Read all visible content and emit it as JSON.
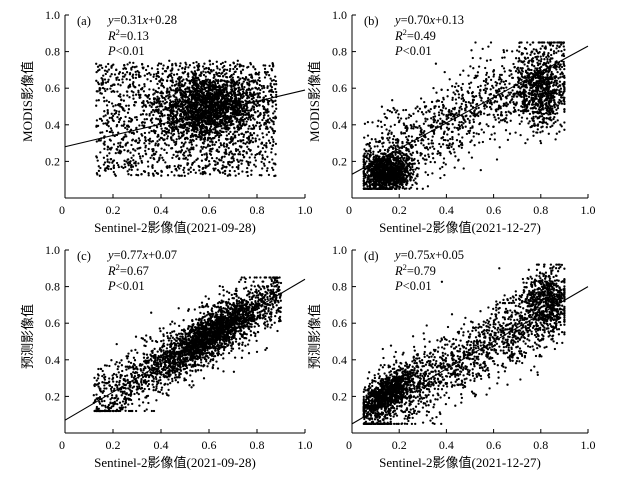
{
  "chart_data": [
    {
      "type": "scatter",
      "panel_label": "(a)",
      "xlabel": "Sentinel-2影像值(2021-09-28)",
      "ylabel": "MODIS影像值",
      "xlim": [
        0,
        1.0
      ],
      "ylim": [
        0,
        1.0
      ],
      "xticks": [
        "0",
        "0.2",
        "0.4",
        "0.6",
        "0.8",
        "1.0"
      ],
      "yticks": [
        "0",
        "0.2",
        "0.4",
        "0.6",
        "0.8",
        "1.0"
      ],
      "annotation": {
        "equation": "y=0.31x+0.28",
        "r2": "R2=0.13",
        "p": "P<0.01"
      },
      "regression": {
        "slope": 0.31,
        "intercept": 0.28
      },
      "point_cloud": {
        "x_range": [
          0.13,
          0.88
        ],
        "y_range": [
          0.12,
          0.75
        ],
        "center": [
          0.6,
          0.5
        ],
        "count": 3500
      }
    },
    {
      "type": "scatter",
      "panel_label": "(b)",
      "xlabel": "Sentinel-2影像值(2021-12-27)",
      "ylabel": "MODIS影像值",
      "xlim": [
        0,
        1.0
      ],
      "ylim": [
        0,
        1.0
      ],
      "xticks": [
        "0",
        "0.2",
        "0.4",
        "0.6",
        "0.8",
        "1.0"
      ],
      "yticks": [
        "0",
        "0.2",
        "0.4",
        "0.6",
        "0.8",
        "1.0"
      ],
      "annotation": {
        "equation": "y=0.70x+0.13",
        "r2": "R2=0.49",
        "p": "P<0.01"
      },
      "regression": {
        "slope": 0.7,
        "intercept": 0.13
      },
      "point_cloud": {
        "x_range": [
          0.05,
          0.9
        ],
        "y_range": [
          0.05,
          0.82
        ],
        "center": [
          0.15,
          0.15
        ],
        "count": 3000
      }
    },
    {
      "type": "scatter",
      "panel_label": "(c)",
      "xlabel": "Sentinel-2影像值(2021-09-28)",
      "ylabel": "预测影像值",
      "xlim": [
        0,
        1.0
      ],
      "ylim": [
        0,
        1.0
      ],
      "xticks": [
        "0",
        "0.2",
        "0.4",
        "0.6",
        "0.8",
        "1.0"
      ],
      "yticks": [
        "0",
        "0.2",
        "0.4",
        "0.6",
        "0.8",
        "1.0"
      ],
      "annotation": {
        "equation": "y=0.77x+0.07",
        "r2": "R2=0.67",
        "p": "P<0.01"
      },
      "regression": {
        "slope": 0.77,
        "intercept": 0.07
      },
      "point_cloud": {
        "x_range": [
          0.12,
          0.9
        ],
        "y_range": [
          0.12,
          0.85
        ],
        "center": [
          0.6,
          0.55
        ],
        "count": 3000
      }
    },
    {
      "type": "scatter",
      "panel_label": "(d)",
      "xlabel": "Sentinel-2影像值(2021-12-27)",
      "ylabel": "预测影像值",
      "xlim": [
        0,
        1.0
      ],
      "ylim": [
        0,
        1.0
      ],
      "xticks": [
        "0",
        "0.2",
        "0.4",
        "0.6",
        "0.8",
        "1.0"
      ],
      "yticks": [
        "0",
        "0.2",
        "0.4",
        "0.6",
        "0.8",
        "1.0"
      ],
      "annotation": {
        "equation": "y=0.75x+0.05",
        "r2": "R2=0.79",
        "p": "P<0.01"
      },
      "regression": {
        "slope": 0.75,
        "intercept": 0.05
      },
      "point_cloud": {
        "x_range": [
          0.05,
          0.9
        ],
        "y_range": [
          0.05,
          0.92
        ],
        "center": [
          0.15,
          0.15
        ],
        "count": 3000
      }
    }
  ]
}
